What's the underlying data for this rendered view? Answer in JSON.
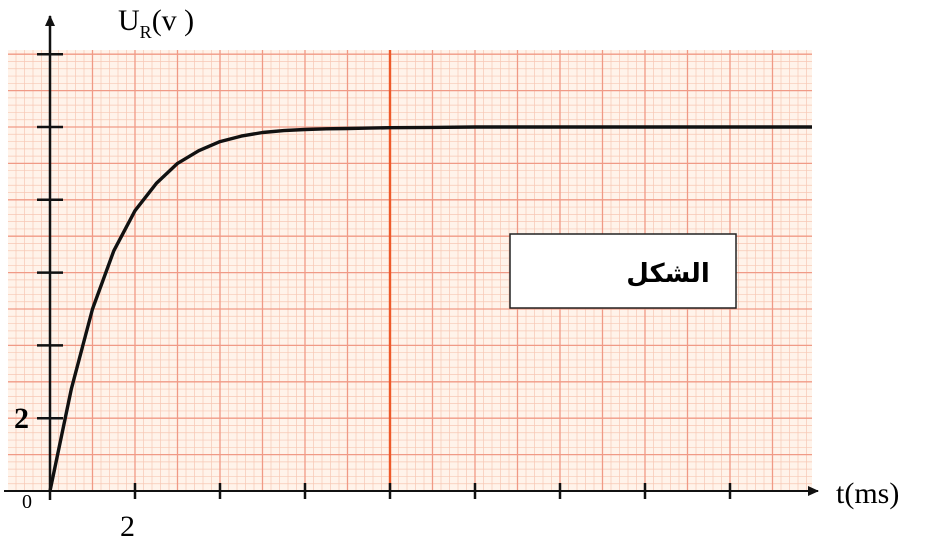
{
  "colors": {
    "paper": "#fff3ea",
    "grid_minor": "#f7c7b4",
    "grid_major": "#f09a86",
    "marker_line": "#ee5a2a",
    "curve": "#111111",
    "axis": "#111111"
  },
  "chart_data": {
    "type": "line",
    "ylabel_main": "U",
    "ylabel_sub": "R",
    "ylabel_rest": "(v )",
    "xlabel": "t(ms)",
    "x_tick_label": "2",
    "y_tick_label": "2",
    "origin_label": "0",
    "legend_box_text": "الشكل",
    "xlim": [
      0,
      16
    ],
    "ylim": [
      0,
      12
    ],
    "x_ticks": [
      2,
      4,
      6,
      8,
      10,
      12,
      14,
      16
    ],
    "y_ticks": [
      2,
      4,
      6,
      8,
      10,
      12
    ],
    "x_marker": 8,
    "series": [
      {
        "x": [
          0,
          0.5,
          1,
          1.5,
          2,
          2.5,
          3,
          3.5,
          4,
          4.5,
          5,
          5.5,
          6,
          6.5,
          7,
          7.5,
          8,
          9,
          10,
          11,
          12,
          13,
          14,
          15,
          16,
          18
        ],
        "y": [
          0,
          2.8,
          5.0,
          6.6,
          7.7,
          8.45,
          9.0,
          9.35,
          9.6,
          9.75,
          9.85,
          9.9,
          9.93,
          9.95,
          9.96,
          9.97,
          9.98,
          9.99,
          10,
          10,
          10,
          10,
          10,
          10,
          10,
          10
        ]
      }
    ]
  }
}
